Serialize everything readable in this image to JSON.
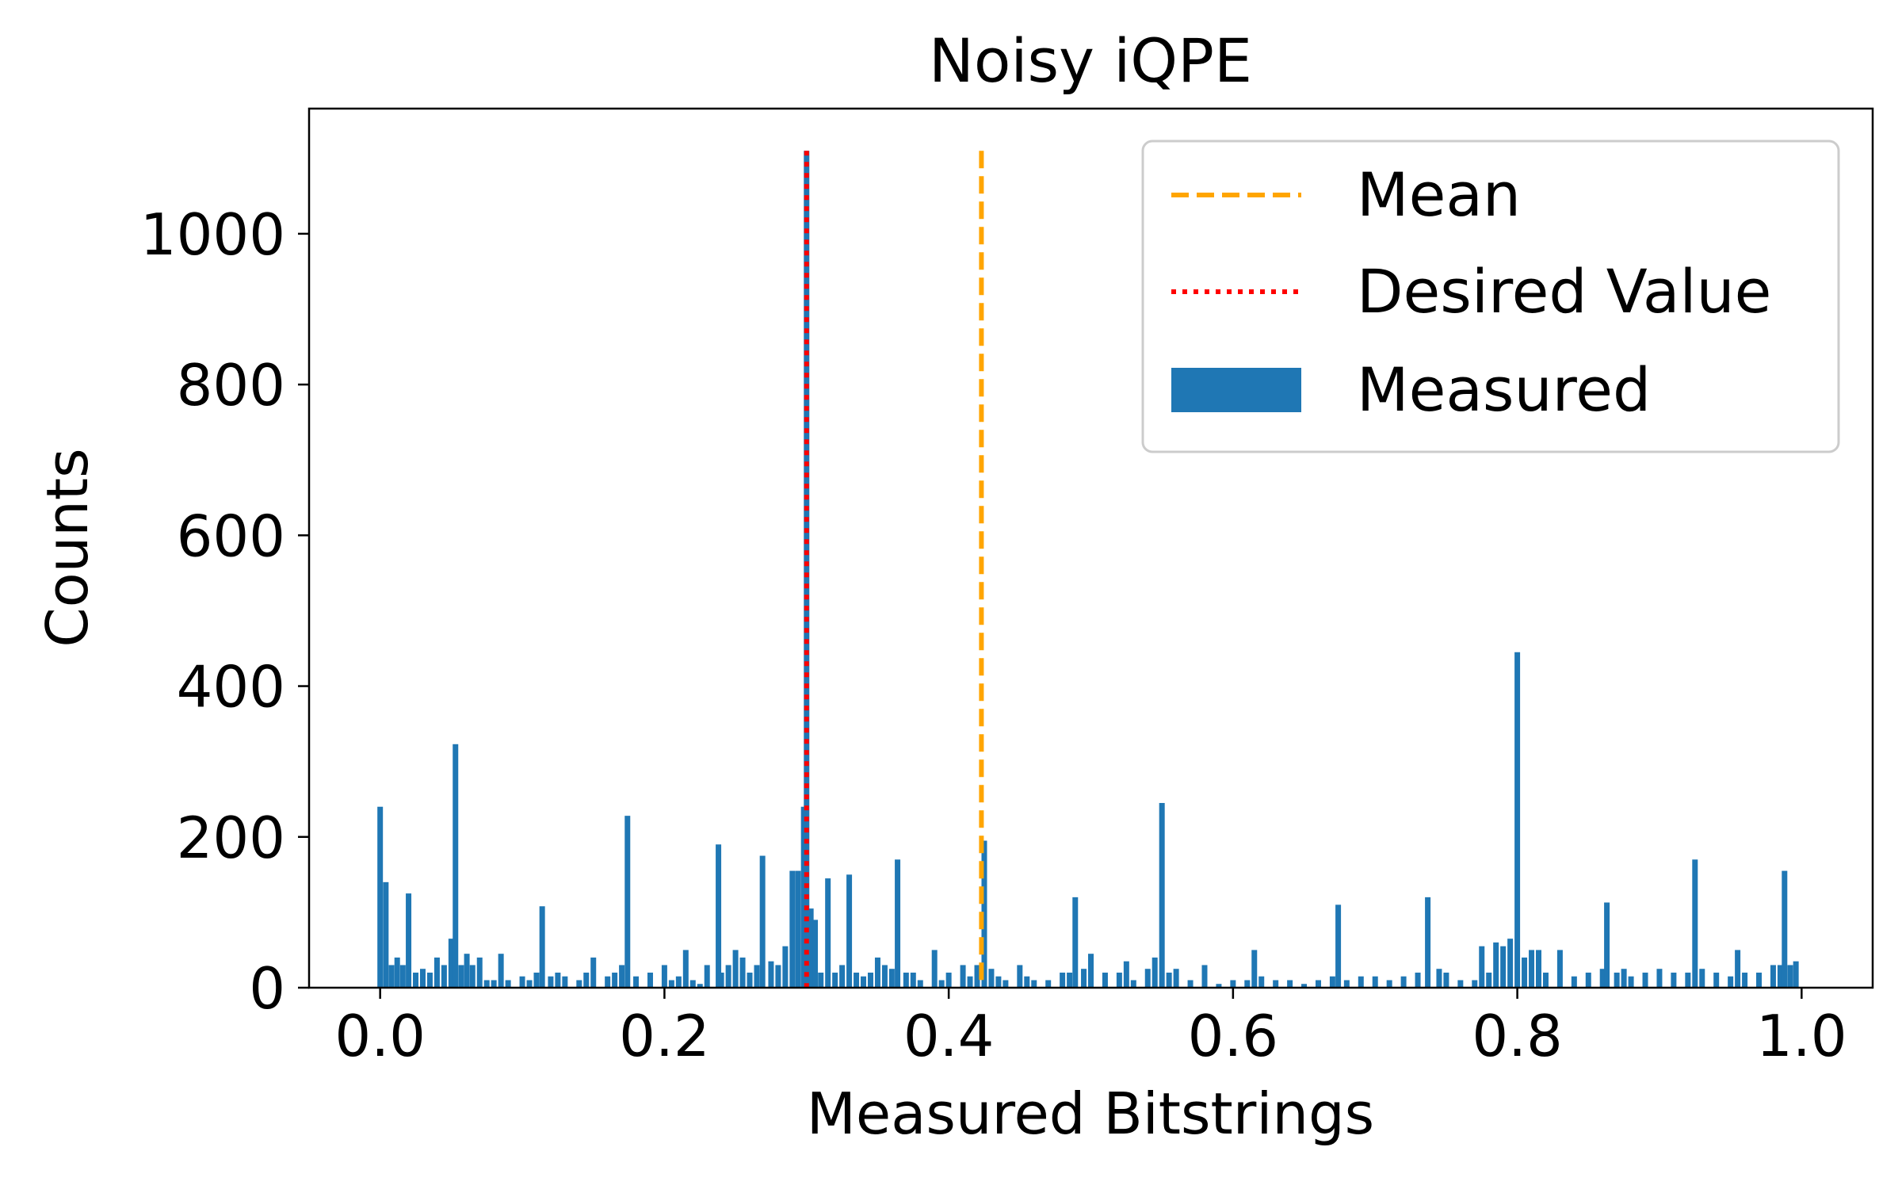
{
  "chart_data": {
    "type": "bar",
    "title": "Noisy iQPE",
    "xlabel": "Measured Bitstrings",
    "ylabel": "Counts",
    "xlim": [
      -0.05,
      1.05
    ],
    "ylim": [
      0,
      1166
    ],
    "xticks": [
      0.0,
      0.2,
      0.4,
      0.6,
      0.8,
      1.0
    ],
    "xtick_labels": [
      "0.0",
      "0.2",
      "0.4",
      "0.6",
      "0.8",
      "1.0"
    ],
    "yticks": [
      0,
      200,
      400,
      600,
      800,
      1000
    ],
    "ytick_labels": [
      "0",
      "200",
      "400",
      "600",
      "800",
      "1000"
    ],
    "grid": false,
    "legend_position": "top-right",
    "colors": {
      "bars": "#1f77b4",
      "mean": "#ffa500",
      "desired": "#ff0000",
      "legend_border": "#cccccc"
    },
    "mean": 0.423,
    "desired_value": 0.3,
    "legend": [
      {
        "label": "Mean",
        "style": "dashed",
        "color": "#ffa500"
      },
      {
        "label": "Desired Value",
        "style": "dotted",
        "color": "#ff0000"
      },
      {
        "label": "Measured",
        "style": "bar",
        "color": "#1f77b4"
      }
    ],
    "bar_width": 0.0039,
    "bars": [
      [
        0.0,
        240
      ],
      [
        0.004,
        140
      ],
      [
        0.008,
        30
      ],
      [
        0.012,
        40
      ],
      [
        0.016,
        30
      ],
      [
        0.02,
        125
      ],
      [
        0.025,
        20
      ],
      [
        0.03,
        25
      ],
      [
        0.035,
        20
      ],
      [
        0.04,
        40
      ],
      [
        0.045,
        30
      ],
      [
        0.05,
        65
      ],
      [
        0.053,
        323
      ],
      [
        0.057,
        30
      ],
      [
        0.061,
        45
      ],
      [
        0.065,
        30
      ],
      [
        0.07,
        40
      ],
      [
        0.075,
        10
      ],
      [
        0.08,
        10
      ],
      [
        0.085,
        45
      ],
      [
        0.09,
        10
      ],
      [
        0.1,
        15
      ],
      [
        0.105,
        10
      ],
      [
        0.11,
        20
      ],
      [
        0.114,
        108
      ],
      [
        0.12,
        15
      ],
      [
        0.125,
        20
      ],
      [
        0.13,
        15
      ],
      [
        0.14,
        10
      ],
      [
        0.145,
        20
      ],
      [
        0.15,
        40
      ],
      [
        0.16,
        15
      ],
      [
        0.165,
        20
      ],
      [
        0.17,
        30
      ],
      [
        0.174,
        228
      ],
      [
        0.18,
        15
      ],
      [
        0.19,
        20
      ],
      [
        0.2,
        30
      ],
      [
        0.205,
        10
      ],
      [
        0.21,
        15
      ],
      [
        0.215,
        50
      ],
      [
        0.22,
        10
      ],
      [
        0.225,
        5
      ],
      [
        0.23,
        30
      ],
      [
        0.24,
        20
      ],
      [
        0.238,
        190
      ],
      [
        0.245,
        30
      ],
      [
        0.25,
        50
      ],
      [
        0.255,
        40
      ],
      [
        0.26,
        20
      ],
      [
        0.265,
        30
      ],
      [
        0.269,
        175
      ],
      [
        0.275,
        35
      ],
      [
        0.28,
        30
      ],
      [
        0.285,
        55
      ],
      [
        0.29,
        155
      ],
      [
        0.294,
        155
      ],
      [
        0.298,
        240
      ],
      [
        0.3,
        1110
      ],
      [
        0.303,
        105
      ],
      [
        0.306,
        90
      ],
      [
        0.31,
        20
      ],
      [
        0.315,
        145
      ],
      [
        0.32,
        20
      ],
      [
        0.325,
        30
      ],
      [
        0.33,
        150
      ],
      [
        0.335,
        20
      ],
      [
        0.34,
        15
      ],
      [
        0.345,
        20
      ],
      [
        0.35,
        40
      ],
      [
        0.355,
        30
      ],
      [
        0.36,
        25
      ],
      [
        0.364,
        170
      ],
      [
        0.37,
        20
      ],
      [
        0.375,
        20
      ],
      [
        0.38,
        10
      ],
      [
        0.39,
        50
      ],
      [
        0.395,
        10
      ],
      [
        0.4,
        20
      ],
      [
        0.41,
        30
      ],
      [
        0.415,
        15
      ],
      [
        0.42,
        30
      ],
      [
        0.425,
        195
      ],
      [
        0.43,
        25
      ],
      [
        0.435,
        15
      ],
      [
        0.44,
        10
      ],
      [
        0.45,
        30
      ],
      [
        0.455,
        15
      ],
      [
        0.46,
        10
      ],
      [
        0.47,
        10
      ],
      [
        0.48,
        20
      ],
      [
        0.485,
        20
      ],
      [
        0.489,
        120
      ],
      [
        0.495,
        25
      ],
      [
        0.5,
        45
      ],
      [
        0.51,
        20
      ],
      [
        0.52,
        20
      ],
      [
        0.525,
        35
      ],
      [
        0.53,
        10
      ],
      [
        0.54,
        25
      ],
      [
        0.545,
        40
      ],
      [
        0.55,
        245
      ],
      [
        0.555,
        20
      ],
      [
        0.56,
        25
      ],
      [
        0.57,
        10
      ],
      [
        0.58,
        30
      ],
      [
        0.59,
        5
      ],
      [
        0.6,
        10
      ],
      [
        0.61,
        10
      ],
      [
        0.615,
        50
      ],
      [
        0.62,
        15
      ],
      [
        0.63,
        10
      ],
      [
        0.64,
        10
      ],
      [
        0.65,
        5
      ],
      [
        0.66,
        10
      ],
      [
        0.67,
        15
      ],
      [
        0.674,
        110
      ],
      [
        0.68,
        10
      ],
      [
        0.69,
        15
      ],
      [
        0.7,
        15
      ],
      [
        0.71,
        10
      ],
      [
        0.72,
        15
      ],
      [
        0.73,
        20
      ],
      [
        0.737,
        120
      ],
      [
        0.745,
        25
      ],
      [
        0.75,
        20
      ],
      [
        0.76,
        10
      ],
      [
        0.77,
        10
      ],
      [
        0.775,
        55
      ],
      [
        0.78,
        20
      ],
      [
        0.785,
        60
      ],
      [
        0.79,
        55
      ],
      [
        0.795,
        65
      ],
      [
        0.8,
        445
      ],
      [
        0.805,
        40
      ],
      [
        0.81,
        50
      ],
      [
        0.815,
        50
      ],
      [
        0.82,
        20
      ],
      [
        0.83,
        50
      ],
      [
        0.84,
        15
      ],
      [
        0.85,
        20
      ],
      [
        0.86,
        25
      ],
      [
        0.863,
        113
      ],
      [
        0.87,
        20
      ],
      [
        0.875,
        25
      ],
      [
        0.88,
        15
      ],
      [
        0.89,
        20
      ],
      [
        0.9,
        25
      ],
      [
        0.91,
        20
      ],
      [
        0.92,
        20
      ],
      [
        0.925,
        170
      ],
      [
        0.93,
        25
      ],
      [
        0.94,
        20
      ],
      [
        0.95,
        15
      ],
      [
        0.955,
        50
      ],
      [
        0.96,
        20
      ],
      [
        0.97,
        20
      ],
      [
        0.98,
        30
      ],
      [
        0.985,
        30
      ],
      [
        0.988,
        155
      ],
      [
        0.992,
        30
      ],
      [
        0.996,
        35
      ]
    ]
  }
}
